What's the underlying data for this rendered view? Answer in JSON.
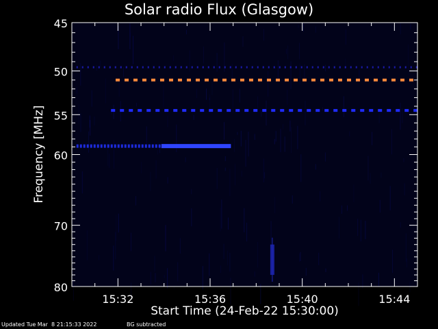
{
  "chart_data": {
    "type": "heatmap",
    "title": "Solar radio Flux (Glasgow)",
    "xlabel": "Start Time (24-Feb-22 15:30:00)",
    "ylabel": "Frequency [MHz]",
    "x_ticks": [
      "15:32",
      "15:36",
      "15:40",
      "15:44"
    ],
    "x_tick_minutes": [
      2,
      6,
      10,
      14
    ],
    "xlim_minutes": [
      0,
      15
    ],
    "y_ticks": [
      "45",
      "50",
      "55",
      "60",
      "70",
      "80"
    ],
    "y_tick_values": [
      45,
      50,
      55,
      60,
      70,
      80
    ],
    "ylim": [
      45,
      80
    ],
    "y_inverted": true,
    "y_scale": "log",
    "features": [
      {
        "kind": "dashed-line",
        "freq_mhz": 51,
        "start_min": 1.9,
        "end_min": 15.0,
        "color": "#ff8a3c"
      },
      {
        "kind": "dashed-line",
        "freq_mhz": 54.5,
        "start_min": 1.7,
        "end_min": 15.0,
        "color": "#1f2bff"
      },
      {
        "kind": "dotted-line",
        "freq_mhz": 49.6,
        "start_min": 0.2,
        "end_min": 15.0,
        "color": "#1a1aa8"
      },
      {
        "kind": "band",
        "freq_mhz": 58.9,
        "start_min": 0.2,
        "end_min": 6.9,
        "color": "#2233ff"
      },
      {
        "kind": "burst",
        "freq_start": 73,
        "freq_end": 78,
        "time_min": 8.7,
        "color": "#1e27b8"
      }
    ]
  },
  "footer": {
    "updated": "Updated Tue Mar  8 21:15:33 2022",
    "note": "BG subtracted"
  },
  "colors": {
    "background": "#000000",
    "plot_background": "#02031a",
    "axis": "#ffffff"
  }
}
